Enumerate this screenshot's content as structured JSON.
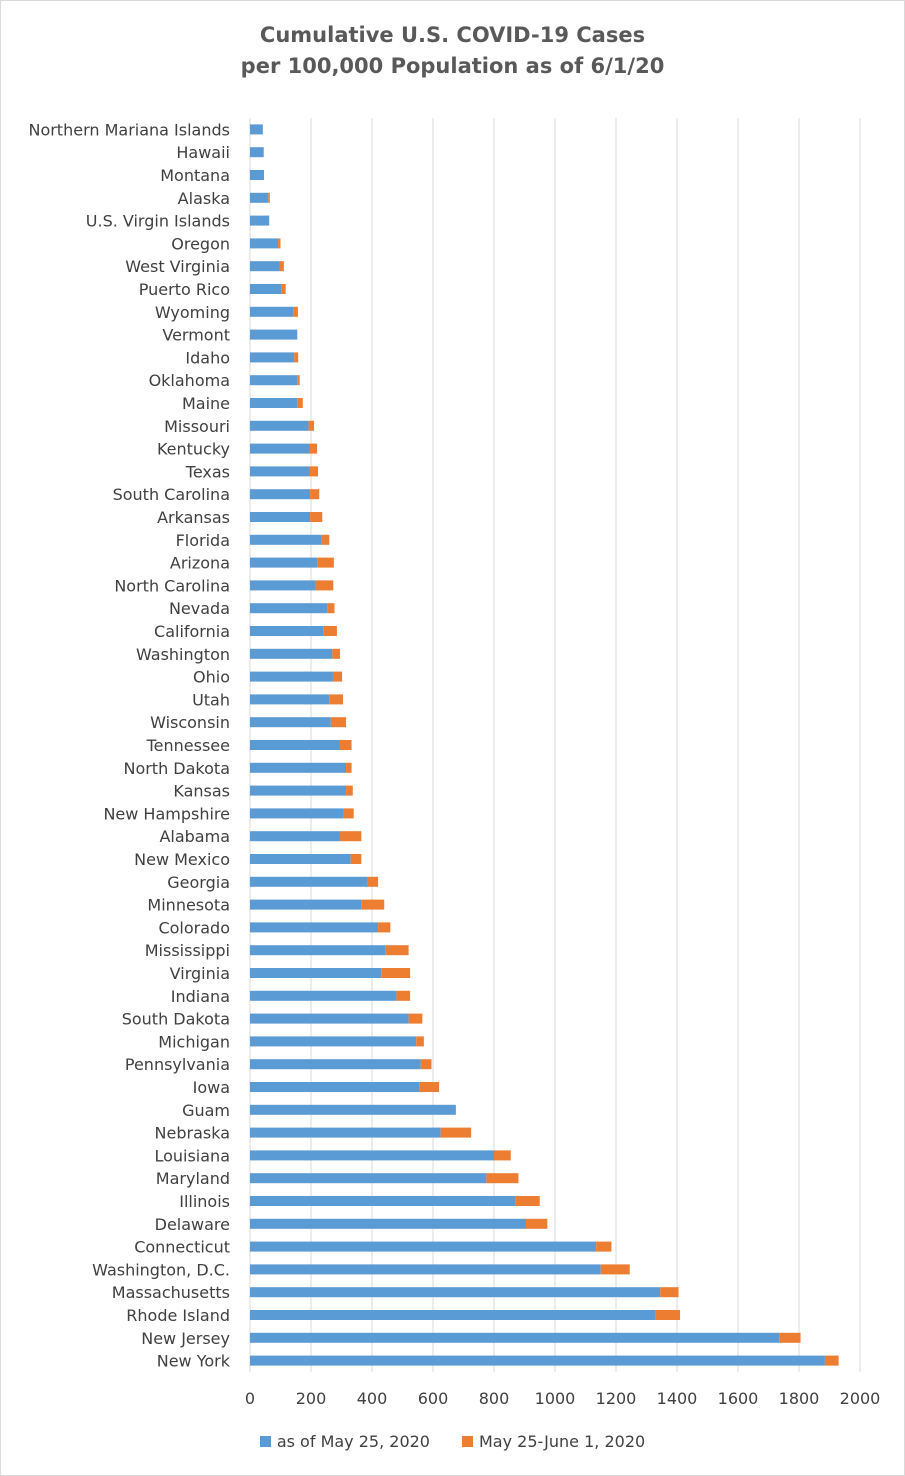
{
  "colors": {
    "base": "#5b9bd5",
    "increment": "#ed7d31",
    "grid": "#d9d9d9",
    "text": "#404040",
    "title": "#595959"
  },
  "chart_data": {
    "type": "bar",
    "orientation": "horizontal",
    "stacked": true,
    "title_lines": [
      "Cumulative U.S. COVID-19 Cases",
      "per 100,000 Population as of 6/1/20"
    ],
    "xlim": [
      0,
      2000
    ],
    "x_ticks": [
      "0",
      "200",
      "400",
      "600",
      "800",
      "1000",
      "1200",
      "1400",
      "1600",
      "1800",
      "2000"
    ],
    "grid": "vertical",
    "legend_position": "bottom",
    "categories": [
      "Northern Mariana Islands",
      "Hawaii",
      "Montana",
      "Alaska",
      "U.S. Virgin Islands",
      "Oregon",
      "West Virginia",
      "Puerto Rico",
      "Wyoming",
      "Vermont",
      "Idaho",
      "Oklahoma",
      "Maine",
      "Missouri",
      "Kentucky",
      "Texas",
      "South Carolina",
      "Arkansas",
      "Florida",
      "Arizona",
      "North Carolina",
      "Nevada",
      "California",
      "Washington",
      "Ohio",
      "Utah",
      "Wisconsin",
      "Tennessee",
      "North Dakota",
      "Kansas",
      "New Hampshire",
      "Alabama",
      "New Mexico",
      "Georgia",
      "Minnesota",
      "Colorado",
      "Mississippi",
      "Virginia",
      "Indiana",
      "South Dakota",
      "Michigan",
      "Pennsylvania",
      "Iowa",
      "Guam",
      "Nebraska",
      "Louisiana",
      "Maryland",
      "Illinois",
      "Delaware",
      "Connecticut",
      "Washington, D.C.",
      "Massachusetts",
      "Rhode Island",
      "New Jersey",
      "New York"
    ],
    "series": [
      {
        "name": "as of May 25, 2020",
        "values": [
          42,
          45,
          46,
          60,
          63,
          92,
          98,
          102,
          142,
          155,
          145,
          155,
          155,
          192,
          195,
          195,
          197,
          197,
          235,
          220,
          215,
          255,
          240,
          270,
          272,
          260,
          265,
          295,
          315,
          315,
          305,
          295,
          330,
          385,
          365,
          420,
          445,
          430,
          480,
          520,
          545,
          560,
          555,
          675,
          625,
          800,
          775,
          870,
          905,
          1135,
          1150,
          1345,
          1330,
          1735,
          1885
        ]
      },
      {
        "name": "May 25-June 1, 2020",
        "values": [
          0,
          0,
          0,
          5,
          0,
          8,
          13,
          15,
          15,
          0,
          13,
          8,
          18,
          18,
          25,
          28,
          30,
          40,
          25,
          55,
          58,
          22,
          45,
          25,
          30,
          45,
          50,
          38,
          18,
          22,
          35,
          70,
          35,
          35,
          75,
          40,
          75,
          95,
          45,
          45,
          25,
          35,
          65,
          0,
          100,
          55,
          105,
          80,
          70,
          50,
          95,
          60,
          80,
          70,
          45
        ]
      }
    ]
  }
}
